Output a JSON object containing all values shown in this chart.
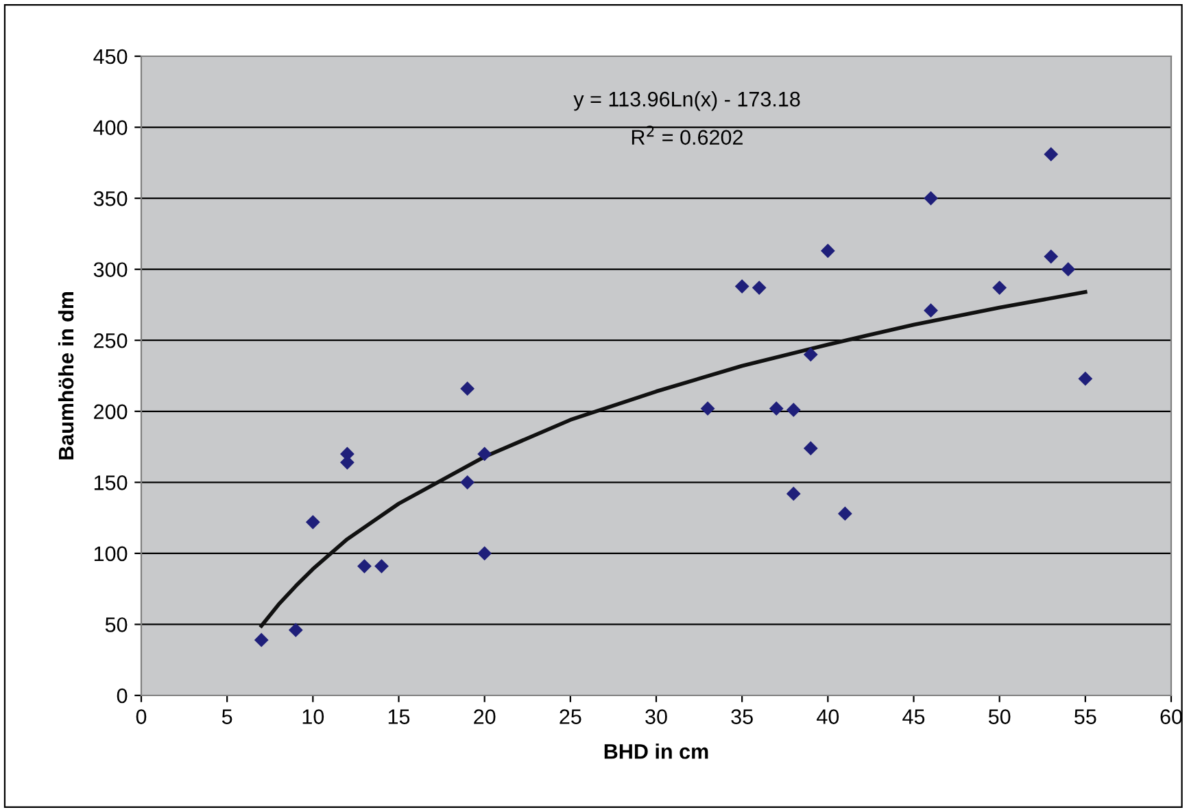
{
  "chart_data": {
    "type": "scatter",
    "xlabel": "BHD in cm",
    "ylabel": "Baumhöhe in dm",
    "annotations": [
      "y = 113.96Ln(x) - 173.18",
      "R$^{2}$ = 0.6202"
    ],
    "series": [
      {
        "color": "#1f1f7a",
        "marker": "diamond",
        "x": [
          7,
          9,
          10,
          12,
          12,
          13,
          14,
          19,
          19,
          20,
          20,
          33,
          35,
          36,
          37,
          38,
          38,
          39,
          39,
          40,
          41,
          46,
          46,
          50,
          53,
          53,
          54,
          55
        ],
        "values": [
          39,
          46,
          122,
          170,
          164,
          91,
          91,
          216,
          150,
          170,
          100,
          202,
          288,
          287,
          202,
          201,
          142,
          240,
          174,
          313,
          128,
          350,
          271,
          287,
          381,
          309,
          300,
          223
        ]
      },
      {
        "type": "line",
        "color": "#111111",
        "line_style": "solid",
        "x": [
          7,
          8,
          9,
          10,
          12,
          15,
          20,
          25,
          30,
          35,
          40,
          45,
          50,
          55
        ],
        "values": [
          49,
          64,
          77,
          89,
          110,
          135,
          168,
          194,
          214,
          232,
          247,
          261,
          273,
          284
        ]
      }
    ],
    "xlim": [
      0,
      60
    ],
    "xticks": [
      0,
      5,
      10,
      15,
      20,
      25,
      30,
      35,
      40,
      45,
      50,
      55,
      60
    ],
    "ylim": [
      0,
      450
    ],
    "yticks": [
      0,
      50,
      100,
      150,
      200,
      250,
      300,
      350,
      400,
      450
    ],
    "grid": "y"
  }
}
